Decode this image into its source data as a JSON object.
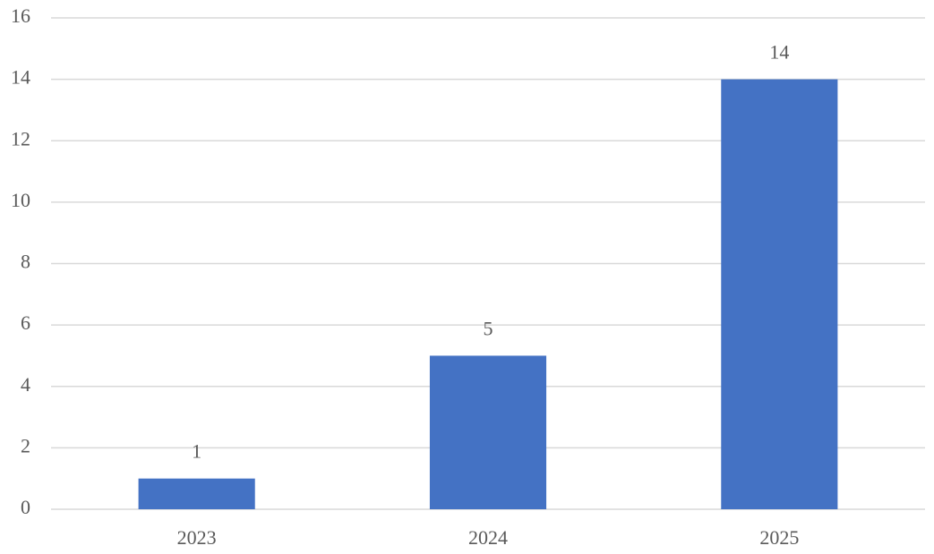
{
  "chart_data": {
    "type": "bar",
    "categories": [
      "2023",
      "2024",
      "2025"
    ],
    "values": [
      1,
      5,
      14
    ],
    "color": "#4472c4",
    "ylim": [
      0,
      16
    ],
    "yticks": [
      0,
      2,
      4,
      6,
      8,
      10,
      12,
      14,
      16
    ],
    "grid": true,
    "data_labels": true
  }
}
